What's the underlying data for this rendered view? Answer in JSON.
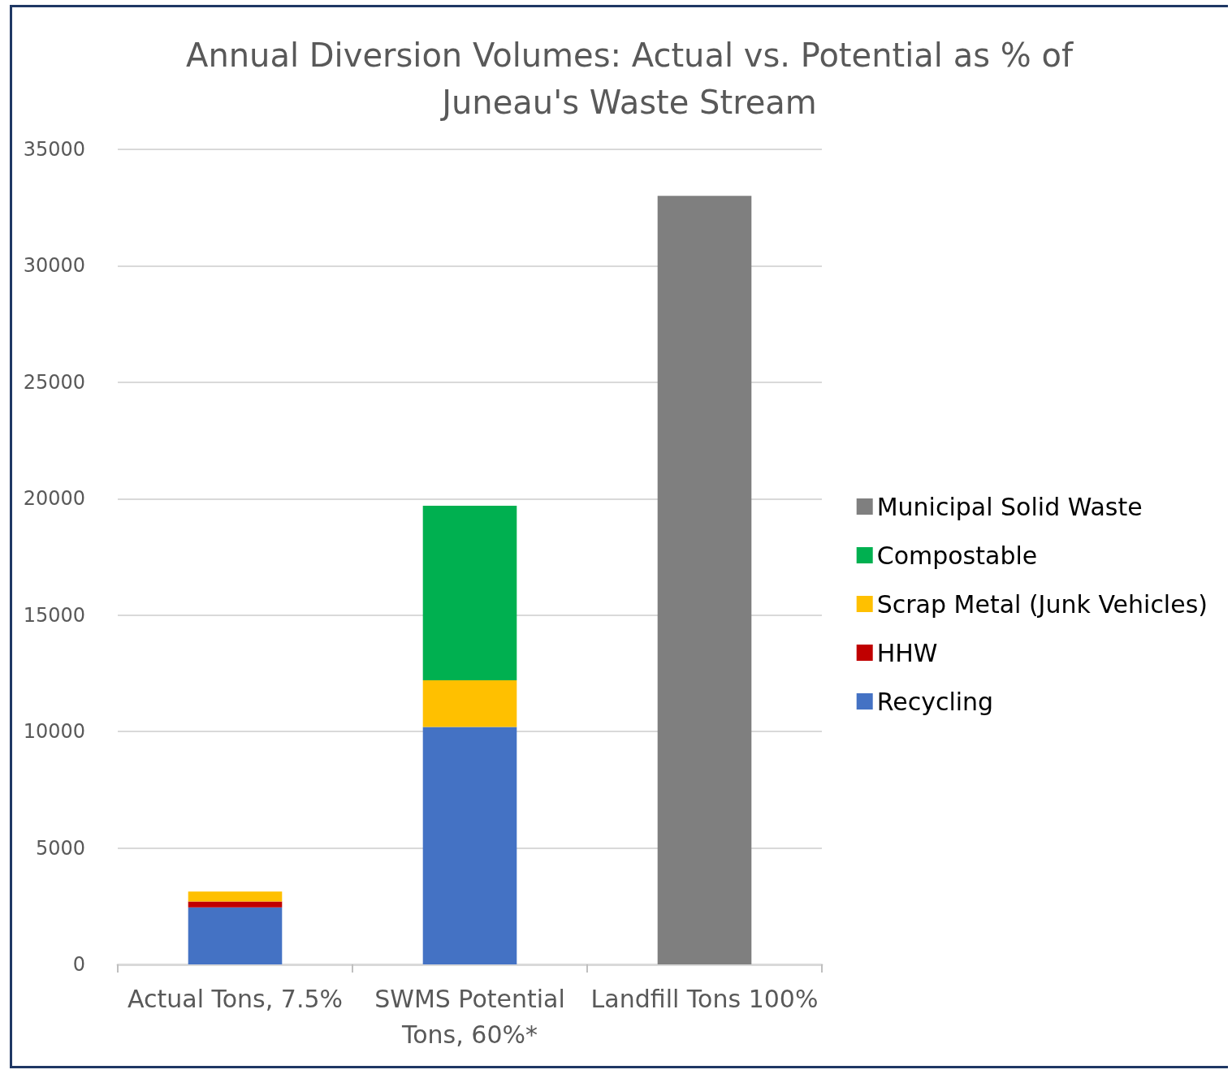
{
  "chart_data": {
    "type": "bar",
    "title": "Annual Diversion Volumes: Actual vs. Potential as % of\nJuneau's Waste Stream",
    "categories": [
      "Actual Tons, 7.5%",
      "SWMS Potential\nTons, 60%*",
      "Landfill Tons 100%"
    ],
    "stacked": true,
    "series": [
      {
        "name": "Recycling",
        "color": "#4472c4",
        "values": [
          2450,
          10200,
          null
        ]
      },
      {
        "name": "HHW",
        "color": "#c00000",
        "values": [
          250,
          null,
          null
        ]
      },
      {
        "name": "Scrap Metal (Junk Vehicles)",
        "color": "#ffc000",
        "values": [
          430,
          2000,
          null
        ]
      },
      {
        "name": "Compostable",
        "color": "#00b050",
        "values": [
          null,
          7500,
          null
        ]
      },
      {
        "name": "Municipal Solid Waste",
        "color": "#7f7f7f",
        "values": [
          null,
          null,
          33000
        ]
      }
    ],
    "ylim": [
      0,
      35000
    ],
    "yticks": [
      0,
      5000,
      10000,
      15000,
      20000,
      25000,
      30000,
      35000
    ],
    "grid": "y",
    "legend": "right"
  }
}
